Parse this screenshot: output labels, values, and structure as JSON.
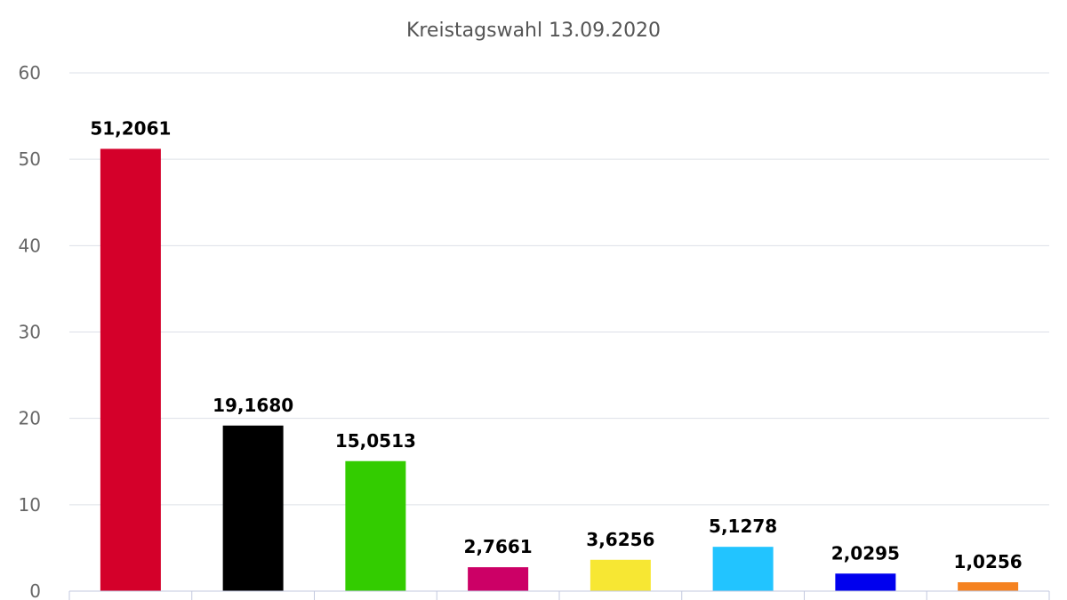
{
  "chart_data": {
    "type": "bar",
    "title": "Kreistagswahl 13.09.2020",
    "xlabel": "",
    "ylabel": "",
    "ylim": [
      0,
      60
    ],
    "yticks": [
      0,
      10,
      20,
      30,
      40,
      50,
      60
    ],
    "grid": true,
    "categories": [
      "",
      "",
      "",
      "",
      "",
      "",
      "",
      ""
    ],
    "values": [
      51.2061,
      19.168,
      15.0513,
      2.7661,
      3.6256,
      5.1278,
      2.0295,
      1.0256
    ],
    "data_labels": [
      "51,2061",
      "19,1680",
      "15,0513",
      "2,7661",
      "3,6256",
      "5,1278",
      "2,0295",
      "1,0256"
    ],
    "colors": [
      "#d4002a",
      "#000000",
      "#33cc00",
      "#cc0066",
      "#f7e733",
      "#22c4ff",
      "#0000ee",
      "#f58220"
    ]
  }
}
